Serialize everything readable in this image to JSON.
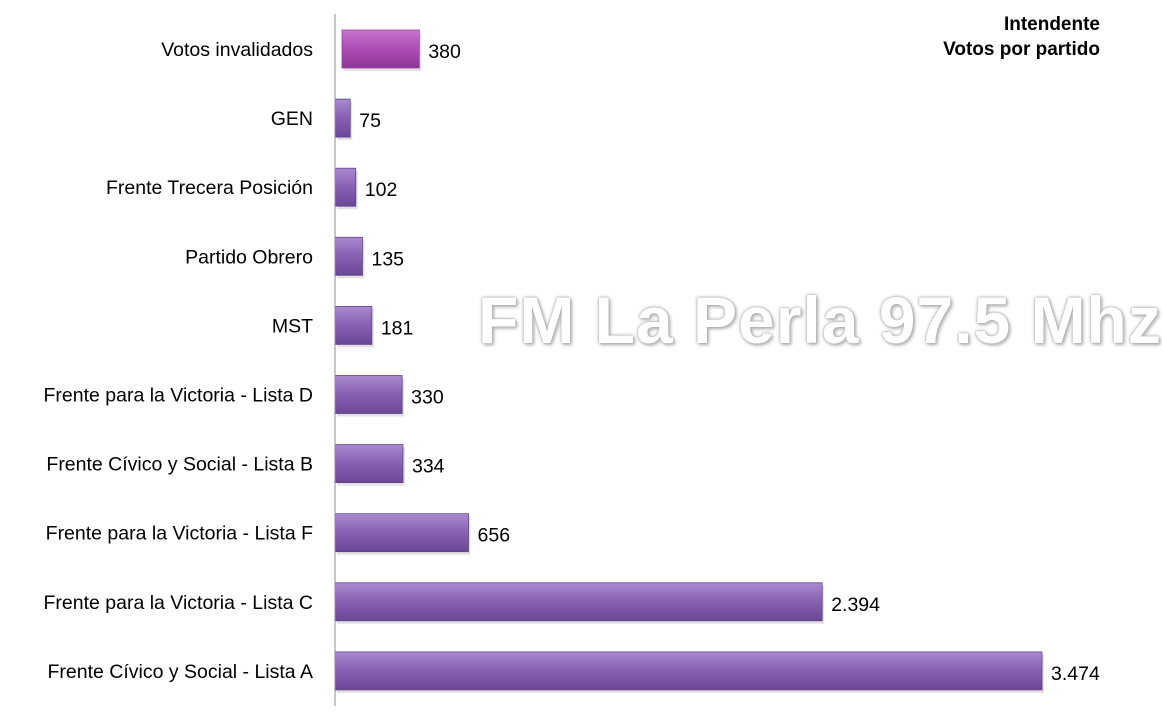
{
  "chart_data": {
    "type": "bar",
    "orientation": "horizontal",
    "title": "Intendente",
    "subtitle": "Votos por partido",
    "categories": [
      "Votos invalidados",
      "GEN",
      "Frente Trecera Posición",
      "Partido Obrero",
      "MST",
      "Frente para la Victoria - Lista D",
      "Frente Cívico y Social - Lista B",
      "Frente para la Victoria - Lista F",
      "Frente para la Victoria - Lista C",
      "Frente Cívico y Social - Lista A"
    ],
    "values": [
      380,
      75,
      102,
      135,
      181,
      330,
      334,
      656,
      2394,
      3474
    ],
    "value_labels": [
      "380",
      "75",
      "102",
      "135",
      "181",
      "330",
      "334",
      "656",
      "2.394",
      "3.474"
    ],
    "highlight_index": 0,
    "xlim": [
      0,
      3600
    ],
    "grid": false,
    "legend": "none",
    "colors": {
      "bar": "#8a63b4",
      "highlight": "#b04fb8"
    }
  },
  "watermark": "FM La Perla 97.5 Mhz"
}
